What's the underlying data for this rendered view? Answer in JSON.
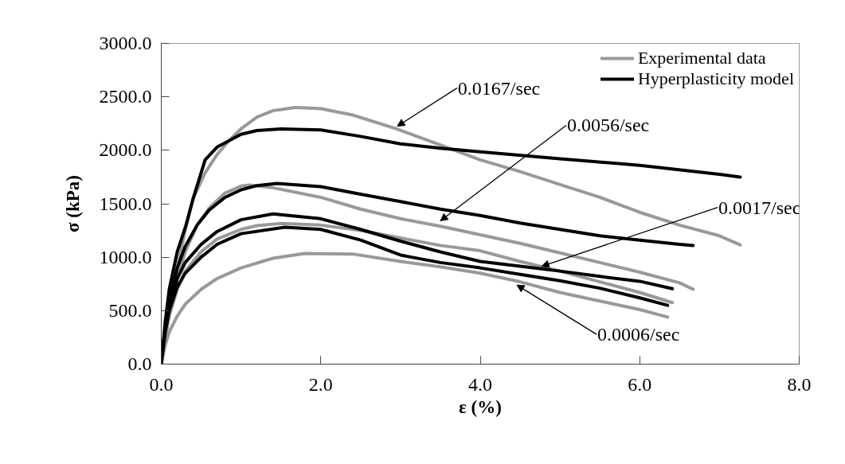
{
  "chart_data": {
    "type": "line",
    "xlabel": "ε (%)",
    "ylabel": "σ (kPa)",
    "xlim": [
      0,
      8
    ],
    "ylim": [
      0,
      3000
    ],
    "xticks": [
      {
        "value": 0,
        "label": "0.0"
      },
      {
        "value": 2,
        "label": "2.0"
      },
      {
        "value": 4,
        "label": "4.0"
      },
      {
        "value": 6,
        "label": "6.0"
      },
      {
        "value": 8,
        "label": "8.0"
      }
    ],
    "yticks": [
      {
        "value": 0,
        "label": "0.0"
      },
      {
        "value": 500,
        "label": "500.0"
      },
      {
        "value": 1000,
        "label": "1000.0"
      },
      {
        "value": 1500,
        "label": "1500.0"
      },
      {
        "value": 2000,
        "label": "2000.0"
      },
      {
        "value": 2500,
        "label": "2500.0"
      },
      {
        "value": 3000,
        "label": "3000.0"
      }
    ],
    "grid": false,
    "legend": "top right",
    "marker": "none",
    "line_style": "solid",
    "series": [
      {
        "name": "Experimental data",
        "color": "#999999",
        "x": [
          0,
          0.05,
          0.1,
          0.2,
          0.3,
          0.4,
          0.55,
          0.7,
          0.85,
          1.0,
          1.2,
          1.4,
          1.68,
          2.0,
          2.4,
          2.95,
          3.5,
          4.0,
          4.5,
          5.0,
          5.5,
          6.0,
          6.5,
          7.0,
          7.26
        ],
        "values": [
          0,
          250,
          500,
          900,
          1250,
          1550,
          1790,
          1960,
          2090,
          2200,
          2310,
          2370,
          2400,
          2390,
          2330,
          2200,
          2050,
          1910,
          1800,
          1680,
          1560,
          1420,
          1300,
          1200,
          1116
        ]
      },
      {
        "name": "Hyperplasticity model",
        "color": "#000000",
        "x": [
          0,
          0.05,
          0.1,
          0.2,
          0.31,
          0.4,
          0.55,
          0.7,
          0.85,
          1.0,
          1.2,
          1.5,
          2.0,
          2.5,
          3.0,
          3.5,
          4.0,
          5.0,
          6.0,
          7.0,
          7.26
        ],
        "values": [
          0,
          400,
          700,
          1050,
          1300,
          1550,
          1910,
          2030,
          2090,
          2150,
          2185,
          2200,
          2190,
          2130,
          2060,
          2020,
          1985,
          1920,
          1860,
          1775,
          1750
        ]
      },
      {
        "color": "#999999",
        "x": [
          0,
          0.05,
          0.1,
          0.2,
          0.3,
          0.45,
          0.6,
          0.8,
          1.0,
          1.1,
          1.4,
          2.0,
          2.5,
          3.0,
          3.5,
          4.0,
          4.5,
          5.0,
          5.5,
          6.0,
          6.5,
          6.67
        ],
        "values": [
          0,
          250,
          480,
          800,
          1050,
          1300,
          1460,
          1600,
          1665,
          1675,
          1650,
          1560,
          1450,
          1360,
          1290,
          1210,
          1130,
          1040,
          950,
          860,
          760,
          700
        ]
      },
      {
        "color": "#000000",
        "x": [
          0,
          0.05,
          0.1,
          0.2,
          0.3,
          0.45,
          0.6,
          0.8,
          1.0,
          1.2,
          1.45,
          2.0,
          2.5,
          3.0,
          3.5,
          4.0,
          4.5,
          5.0,
          5.5,
          6.0,
          6.5,
          6.67
        ],
        "values": [
          0,
          350,
          600,
          900,
          1100,
          1300,
          1440,
          1560,
          1630,
          1670,
          1690,
          1660,
          1590,
          1520,
          1450,
          1390,
          1320,
          1260,
          1200,
          1160,
          1120,
          1110
        ]
      },
      {
        "color": "#999999",
        "x": [
          0,
          0.05,
          0.1,
          0.2,
          0.3,
          0.5,
          0.7,
          1.0,
          1.2,
          1.5,
          2.0,
          2.5,
          3.0,
          3.5,
          4.0,
          4.5,
          5.0,
          5.5,
          6.0,
          6.41
        ],
        "values": [
          0,
          250,
          450,
          700,
          870,
          1050,
          1170,
          1260,
          1295,
          1315,
          1300,
          1250,
          1180,
          1110,
          1060,
          960,
          870,
          770,
          670,
          575
        ]
      },
      {
        "color": "#000000",
        "x": [
          0,
          0.05,
          0.1,
          0.2,
          0.3,
          0.5,
          0.7,
          1.0,
          1.4,
          2.0,
          2.5,
          3.0,
          3.5,
          4.0,
          4.5,
          5.0,
          5.5,
          6.0,
          6.41
        ],
        "values": [
          0,
          350,
          550,
          800,
          950,
          1120,
          1240,
          1350,
          1405,
          1360,
          1260,
          1150,
          1050,
          960,
          915,
          870,
          820,
          775,
          705
        ]
      },
      {
        "color": "#999999",
        "x": [
          0,
          0.05,
          0.1,
          0.2,
          0.3,
          0.5,
          0.7,
          1.0,
          1.4,
          1.8,
          2.4,
          3.0,
          3.5,
          4.0,
          4.5,
          5.0,
          5.5,
          6.0,
          6.35
        ],
        "values": [
          0,
          180,
          300,
          450,
          560,
          700,
          800,
          900,
          990,
          1035,
          1030,
          960,
          910,
          850,
          770,
          670,
          590,
          510,
          440
        ]
      },
      {
        "color": "#000000",
        "x": [
          0,
          0.05,
          0.1,
          0.2,
          0.3,
          0.5,
          0.7,
          1.0,
          1.55,
          2.0,
          2.5,
          3.0,
          3.5,
          4.0,
          4.5,
          5.0,
          5.5,
          6.0,
          6.35
        ],
        "values": [
          0,
          300,
          500,
          720,
          850,
          1000,
          1120,
          1220,
          1280,
          1260,
          1160,
          1020,
          950,
          900,
          840,
          780,
          710,
          620,
          550
        ]
      }
    ],
    "annotations": [
      {
        "text": "0.0167/sec",
        "x": 2.96,
        "y": 2225
      },
      {
        "text": "0.0056/sec",
        "x": 3.5,
        "y": 1340
      },
      {
        "text": "0.0017/sec",
        "x": 4.77,
        "y": 915
      },
      {
        "text": "0.0006/sec",
        "x": 4.46,
        "y": 740
      }
    ]
  }
}
